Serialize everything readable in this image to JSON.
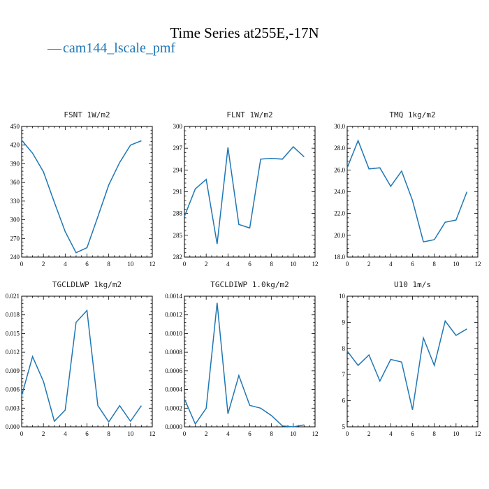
{
  "figure": {
    "title": "Time Series at255E,-17N",
    "legend": {
      "label": "cam144_lscale_pmf",
      "color": "#1f77b4"
    }
  },
  "chart_data": [
    {
      "type": "line",
      "title": "FSNT   1W/m2",
      "x": [
        0,
        1,
        2,
        3,
        4,
        5,
        6,
        7,
        8,
        9,
        10,
        11
      ],
      "series": [
        {
          "values": [
            428,
            407,
            377,
            328,
            281,
            247,
            255,
            305,
            356,
            392,
            420,
            427
          ]
        }
      ],
      "xlim": [
        0,
        12
      ],
      "ylim": [
        240,
        450
      ],
      "xticks": [
        0,
        2,
        4,
        6,
        8,
        10,
        12
      ],
      "yticks": [
        "240",
        "270",
        "300",
        "330",
        "360",
        "390",
        "420",
        "450"
      ]
    },
    {
      "type": "line",
      "title": "FLNT   1W/m2",
      "x": [
        0,
        1,
        2,
        3,
        4,
        5,
        6,
        7,
        8,
        9,
        10,
        11
      ],
      "series": [
        {
          "values": [
            287.6,
            291.4,
            292.7,
            283.8,
            297.1,
            286.5,
            286.0,
            295.5,
            295.6,
            295.5,
            297.2,
            295.8
          ]
        }
      ],
      "xlim": [
        0,
        12
      ],
      "ylim": [
        282,
        300
      ],
      "xticks": [
        0,
        2,
        4,
        6,
        8,
        10,
        12
      ],
      "yticks": [
        "282",
        "285",
        "288",
        "291",
        "294",
        "297",
        "300"
      ]
    },
    {
      "type": "line",
      "title": "TMQ   1kg/m2",
      "x": [
        0,
        1,
        2,
        3,
        4,
        5,
        6,
        7,
        8,
        9,
        10,
        11
      ],
      "series": [
        {
          "values": [
            26.2,
            28.7,
            26.1,
            26.2,
            24.5,
            25.9,
            23.2,
            19.4,
            19.6,
            21.2,
            21.4,
            24.0
          ]
        }
      ],
      "xlim": [
        0,
        12
      ],
      "ylim": [
        18,
        30
      ],
      "xticks": [
        0,
        2,
        4,
        6,
        8,
        10,
        12
      ],
      "yticks": [
        "18.0",
        "20.0",
        "22.0",
        "24.0",
        "26.0",
        "28.0",
        "30.0"
      ]
    },
    {
      "type": "line",
      "title": "TGCLDLWP   1kg/m2",
      "x": [
        0,
        1,
        2,
        3,
        4,
        5,
        6,
        7,
        8,
        9,
        10,
        11
      ],
      "series": [
        {
          "values": [
            0.005,
            0.0113,
            0.0073,
            0.0009,
            0.0027,
            0.0168,
            0.0187,
            0.0034,
            0.0008,
            0.0034,
            0.0009,
            0.0034
          ]
        }
      ],
      "xlim": [
        0,
        12
      ],
      "ylim": [
        0,
        0.021
      ],
      "xticks": [
        0,
        2,
        4,
        6,
        8,
        10,
        12
      ],
      "yticks": [
        "0.000",
        "0.003",
        "0.006",
        "0.009",
        "0.012",
        "0.015",
        "0.018",
        "0.021"
      ]
    },
    {
      "type": "line",
      "title": "TGCLDIWP   1.0kg/m2",
      "x": [
        0,
        1,
        2,
        3,
        4,
        5,
        6,
        7,
        8,
        9,
        10,
        11
      ],
      "series": [
        {
          "values": [
            0.0003,
            3e-05,
            0.0002,
            0.00133,
            0.00014,
            0.00055,
            0.00023,
            0.0002,
            0.00012,
            1e-05,
            0.0,
            2e-05
          ]
        }
      ],
      "xlim": [
        0,
        12
      ],
      "ylim": [
        0,
        0.0014
      ],
      "xticks": [
        0,
        2,
        4,
        6,
        8,
        10,
        12
      ],
      "yticks": [
        "0.0000",
        "0.0002",
        "0.0004",
        "0.0006",
        "0.0008",
        "0.0010",
        "0.0012",
        "0.0014"
      ]
    },
    {
      "type": "line",
      "title": "U10   1m/s",
      "x": [
        0,
        1,
        2,
        3,
        4,
        5,
        6,
        7,
        8,
        9,
        10,
        11
      ],
      "series": [
        {
          "values": [
            7.9,
            7.35,
            7.75,
            6.75,
            7.58,
            7.48,
            5.65,
            8.4,
            7.35,
            9.05,
            8.5,
            8.75
          ]
        }
      ],
      "xlim": [
        0,
        12
      ],
      "ylim": [
        5,
        10
      ],
      "xticks": [
        0,
        2,
        4,
        6,
        8,
        10,
        12
      ],
      "yticks": [
        "5",
        "6",
        "7",
        "8",
        "9",
        "10"
      ]
    }
  ]
}
